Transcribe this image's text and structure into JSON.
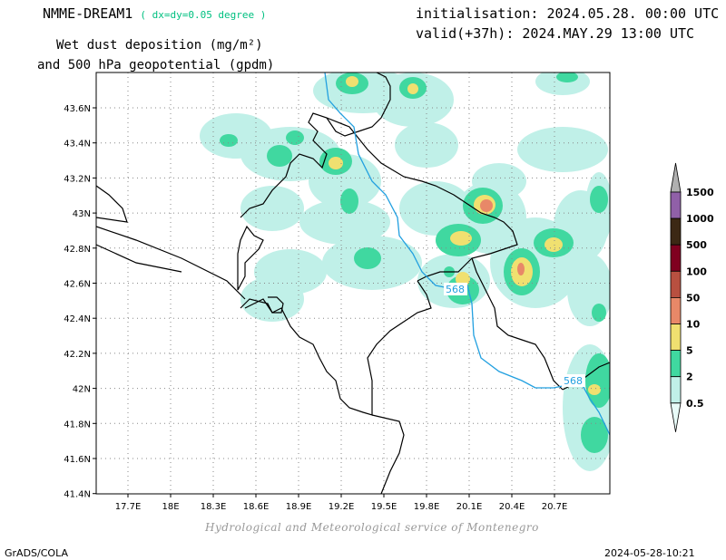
{
  "header": {
    "model": "NMME-DREAM1",
    "resolution": "( dx=dy=0.05 degree )",
    "variable_line1": "Wet dust deposition (mg/m²)",
    "variable_line2": "and 500 hPa geopotential (gpdm)",
    "initialisation": "initialisation: 2024.05.28. 00:00 UTC",
    "valid": "valid(+37h): 2024.MAY.29 13:00 UTC"
  },
  "map": {
    "lat_ticks": [
      "43.6N",
      "43.4N",
      "43.2N",
      "43N",
      "42.8N",
      "42.6N",
      "42.4N",
      "42.2N",
      "42N",
      "41.8N",
      "41.6N",
      "41.4N"
    ],
    "lon_ticks": [
      "17.7E",
      "18E",
      "18.3E",
      "18.6E",
      "18.9E",
      "19.2E",
      "19.5E",
      "19.8E",
      "20.1E",
      "20.4E",
      "20.7E"
    ],
    "contour_labels": [
      "568",
      "568"
    ],
    "grid": true
  },
  "legend": {
    "levels": [
      {
        "label": "1500",
        "color": "#b0b0b0"
      },
      {
        "label": "1000",
        "color": "#9060a8"
      },
      {
        "label": "500",
        "color": "#3c2814"
      },
      {
        "label": "100",
        "color": "#800020"
      },
      {
        "label": "50",
        "color": "#b85040"
      },
      {
        "label": "10",
        "color": "#e88868"
      },
      {
        "label": "5",
        "color": "#f0e070"
      },
      {
        "label": "2",
        "color": "#40d8a0"
      },
      {
        "label": "0.5",
        "color": "#c0f0e8"
      }
    ]
  },
  "credit": "Hydrological and Meteorological service of Montenegro",
  "footer": {
    "left": "GrADS/COLA",
    "right": "2024-05-28-10:21"
  }
}
